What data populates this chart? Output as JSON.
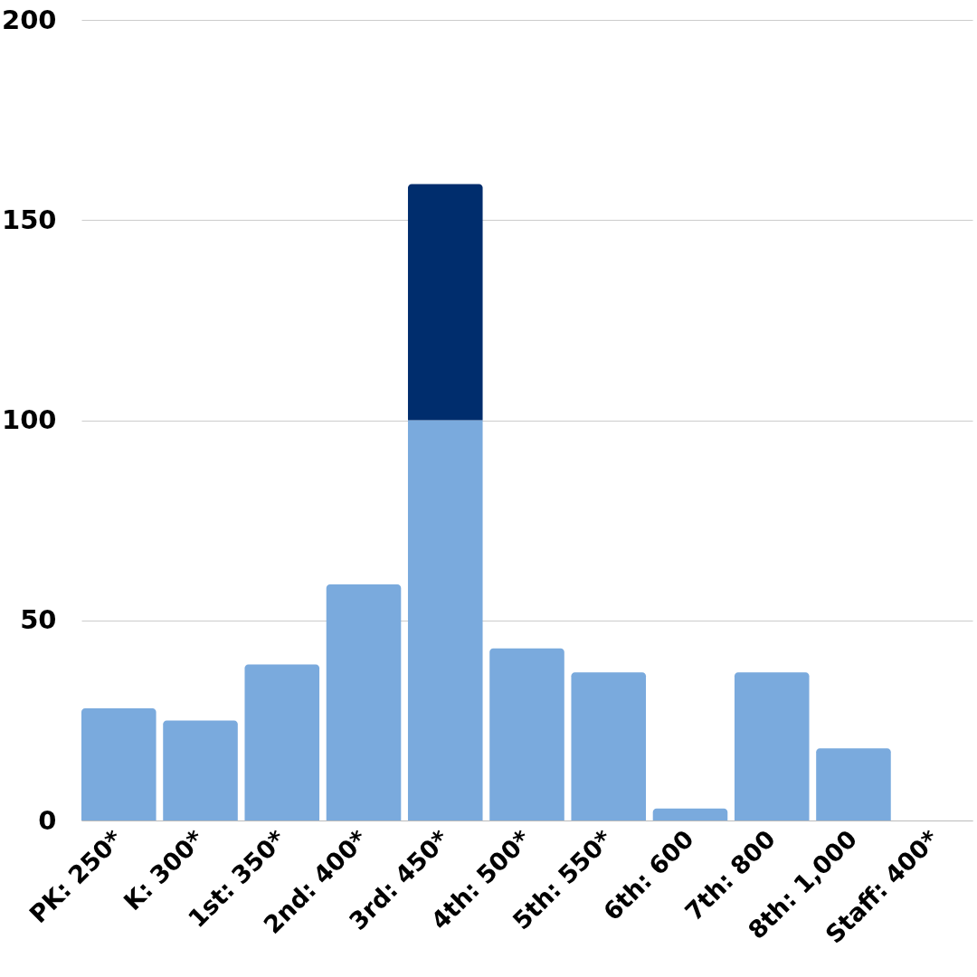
{
  "chart_data": {
    "type": "bar",
    "categories": [
      "PK: 250*",
      "K: 300*",
      "1st: 350*",
      "2nd: 400*",
      "3rd: 450*",
      "4th: 500*",
      "5th: 550*",
      "6th: 600",
      "7th: 800",
      "8th: 1,000",
      "Staff: 400*"
    ],
    "series": [
      {
        "color": "#7aaadd",
        "values": [
          28,
          25,
          39,
          59,
          100,
          43,
          37,
          3,
          37,
          18,
          0
        ]
      },
      {
        "color": "#002d6d",
        "values": [
          null,
          null,
          null,
          null,
          59,
          null,
          null,
          null,
          null,
          null,
          null
        ]
      }
    ],
    "stacked": true,
    "ylim": [
      0,
      200
    ],
    "yticks": [
      0,
      50,
      100,
      150,
      200
    ],
    "grid": "y"
  }
}
